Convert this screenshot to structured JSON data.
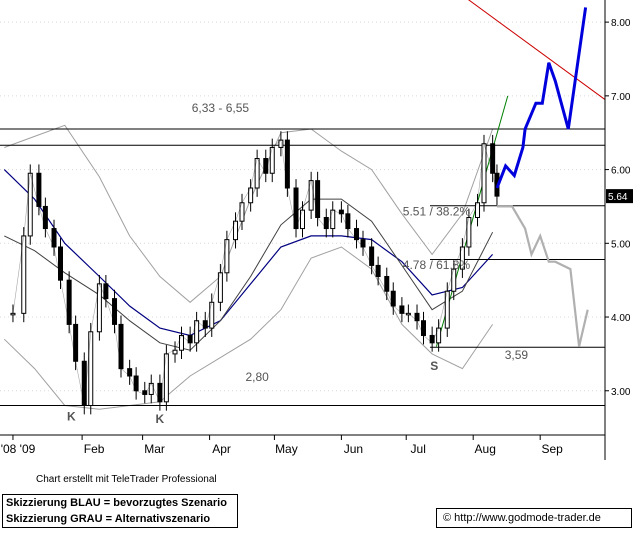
{
  "chart_data": {
    "type": "candlestick",
    "y_axis": {
      "position": "right",
      "ticks": [
        3.0,
        4.0,
        5.0,
        6.0,
        7.0,
        8.0
      ],
      "tick_labels": [
        "3.00",
        "4.00",
        "5.00",
        "6.00",
        "7.00",
        "8.00"
      ],
      "last_price_label": "5.64",
      "range": [
        2.4,
        8.3
      ]
    },
    "x_axis": {
      "tick_labels": [
        "'08 '09",
        "Feb",
        "Mar",
        "Apr",
        "May",
        "Jun",
        "Jul",
        "Aug",
        "Sep"
      ],
      "months": [
        "2008-12-31",
        "2009-02-01",
        "2009-03-01",
        "2009-04-01",
        "2009-05-01",
        "2009-06-01",
        "2009-07-01",
        "2009-08-01",
        "2009-09-01"
      ],
      "range": [
        "2008-12-25",
        "2009-10-01"
      ]
    },
    "horizontal_levels": [
      {
        "value": 6.55,
        "color": "#000000"
      },
      {
        "value": 6.33,
        "color": "#000000"
      },
      {
        "value": 5.51,
        "color": "#000000"
      },
      {
        "value": 4.78,
        "color": "#000000"
      },
      {
        "value": 3.59,
        "color": "#000000"
      },
      {
        "value": 2.8,
        "color": "#000000"
      }
    ],
    "annotations": [
      {
        "text": "6,33 - 6,55",
        "x": "2009-04-06",
        "y": 6.78
      },
      {
        "text": "5.51 / 38.2%",
        "x": "2009-07-15",
        "y": 5.38
      },
      {
        "text": "4.78 / 61.8%",
        "x": "2009-07-15",
        "y": 4.65
      },
      {
        "text": "3,59",
        "x": "2009-08-21",
        "y": 3.43
      },
      {
        "text": "2,80",
        "x": "2009-04-23",
        "y": 3.13
      },
      {
        "text": "K",
        "x": "2009-01-27",
        "y": 2.6
      },
      {
        "text": "K",
        "x": "2009-03-09",
        "y": 2.56
      },
      {
        "text": "S",
        "x": "2009-07-14",
        "y": 3.28
      }
    ],
    "price_series": {
      "name": "close",
      "x": [
        "2008-12-31",
        "2009-01-05",
        "2009-01-08",
        "2009-01-12",
        "2009-01-15",
        "2009-01-19",
        "2009-01-22",
        "2009-01-26",
        "2009-01-29",
        "2009-02-02",
        "2009-02-05",
        "2009-02-09",
        "2009-02-12",
        "2009-02-16",
        "2009-02-19",
        "2009-02-23",
        "2009-02-26",
        "2009-03-02",
        "2009-03-05",
        "2009-03-09",
        "2009-03-12",
        "2009-03-16",
        "2009-03-19",
        "2009-03-23",
        "2009-03-26",
        "2009-03-30",
        "2009-04-02",
        "2009-04-06",
        "2009-04-09",
        "2009-04-13",
        "2009-04-16",
        "2009-04-20",
        "2009-04-23",
        "2009-04-27",
        "2009-04-30",
        "2009-05-04",
        "2009-05-07",
        "2009-05-11",
        "2009-05-14",
        "2009-05-18",
        "2009-05-21",
        "2009-05-25",
        "2009-05-28",
        "2009-06-01",
        "2009-06-04",
        "2009-06-08",
        "2009-06-11",
        "2009-06-15",
        "2009-06-18",
        "2009-06-22",
        "2009-06-25",
        "2009-06-29",
        "2009-07-02",
        "2009-07-06",
        "2009-07-09",
        "2009-07-13",
        "2009-07-16",
        "2009-07-20",
        "2009-07-23",
        "2009-07-27",
        "2009-07-30",
        "2009-08-03",
        "2009-08-06",
        "2009-08-10",
        "2009-08-12"
      ],
      "values": [
        4.05,
        5.1,
        5.95,
        5.5,
        5.2,
        4.95,
        4.5,
        3.9,
        3.4,
        2.8,
        3.8,
        4.45,
        4.25,
        3.9,
        3.3,
        3.2,
        3.0,
        2.95,
        3.1,
        2.85,
        3.5,
        3.55,
        3.75,
        3.65,
        3.95,
        3.85,
        4.2,
        4.6,
        5.05,
        5.3,
        5.55,
        5.75,
        6.15,
        5.95,
        6.3,
        6.4,
        5.75,
        5.2,
        5.45,
        5.85,
        5.35,
        5.2,
        5.45,
        5.4,
        5.2,
        5.05,
        4.95,
        4.7,
        4.55,
        4.35,
        4.15,
        4.05,
        4.05,
        3.95,
        3.75,
        3.65,
        3.85,
        4.35,
        4.65,
        4.95,
        5.35,
        5.55,
        6.35,
        5.95,
        5.64
      ],
      "low": 2.8,
      "high": 6.6
    },
    "overlays": [
      {
        "name": "moving average",
        "color": "#000080",
        "x": [
          "2008-12-27",
          "2009-01-10",
          "2009-01-24",
          "2009-02-09",
          "2009-02-23",
          "2009-03-09",
          "2009-03-23",
          "2009-04-06",
          "2009-04-20",
          "2009-05-04",
          "2009-05-18",
          "2009-06-01",
          "2009-06-15",
          "2009-06-29",
          "2009-07-13",
          "2009-07-27",
          "2009-08-10"
        ],
        "values": [
          6.0,
          5.6,
          5.0,
          4.55,
          4.15,
          3.85,
          3.75,
          3.95,
          4.45,
          4.95,
          5.1,
          5.1,
          5.05,
          4.75,
          4.3,
          4.4,
          4.85
        ]
      },
      {
        "name": "bollinger upper",
        "color": "#a0a0a0",
        "x": [
          "2008-12-27",
          "2009-01-10",
          "2009-01-24",
          "2009-02-09",
          "2009-02-23",
          "2009-03-09",
          "2009-03-23",
          "2009-04-06",
          "2009-04-20",
          "2009-05-04",
          "2009-05-18",
          "2009-06-01",
          "2009-06-15",
          "2009-06-29",
          "2009-07-13",
          "2009-07-27",
          "2009-08-10"
        ],
        "values": [
          6.3,
          6.45,
          6.6,
          5.9,
          5.1,
          4.55,
          4.2,
          4.55,
          5.6,
          6.5,
          6.55,
          6.25,
          6.0,
          5.4,
          4.85,
          5.4,
          6.55
        ]
      },
      {
        "name": "bollinger lower",
        "color": "#a0a0a0",
        "x": [
          "2008-12-27",
          "2009-01-10",
          "2009-01-24",
          "2009-02-09",
          "2009-02-23",
          "2009-03-09",
          "2009-03-23",
          "2009-04-06",
          "2009-04-20",
          "2009-05-04",
          "2009-05-18",
          "2009-06-01",
          "2009-06-15",
          "2009-06-29",
          "2009-07-13",
          "2009-07-27",
          "2009-08-10"
        ],
        "values": [
          3.7,
          3.3,
          2.8,
          2.75,
          2.8,
          2.85,
          3.2,
          3.45,
          3.7,
          4.1,
          4.8,
          4.95,
          4.65,
          3.9,
          3.5,
          3.3,
          3.9
        ]
      },
      {
        "name": "bollinger middle",
        "color": "#404040",
        "x": [
          "2008-12-27",
          "2009-01-10",
          "2009-01-24",
          "2009-02-09",
          "2009-02-23",
          "2009-03-09",
          "2009-03-23",
          "2009-04-06",
          "2009-04-20",
          "2009-05-04",
          "2009-05-18",
          "2009-06-01",
          "2009-06-15",
          "2009-06-29",
          "2009-07-13",
          "2009-07-27",
          "2009-08-10"
        ],
        "values": [
          5.1,
          4.9,
          4.6,
          4.3,
          3.95,
          3.65,
          3.55,
          3.95,
          4.55,
          5.25,
          5.6,
          5.6,
          5.3,
          4.7,
          4.1,
          4.35,
          5.15
        ]
      }
    ],
    "trendlines": [
      {
        "name": "uptrend",
        "color": "#008000",
        "x": [
          "2009-07-15",
          "2009-08-17"
        ],
        "y": [
          3.6,
          7.0
        ]
      },
      {
        "name": "downtrend",
        "color": "#cc0000",
        "x": [
          "2009-07-23",
          "2009-10-01"
        ],
        "y": [
          8.45,
          6.95
        ]
      }
    ],
    "scenarios": [
      {
        "name": "BLAU",
        "color": "#0000dd",
        "x": [
          "2009-08-12",
          "2009-08-16",
          "2009-08-20",
          "2009-08-24",
          "2009-08-25",
          "2009-08-30",
          "2009-09-02",
          "2009-09-05",
          "2009-09-08",
          "2009-09-14",
          "2009-09-22"
        ],
        "y": [
          5.75,
          6.05,
          5.92,
          6.3,
          6.55,
          6.9,
          6.9,
          7.45,
          7.2,
          6.55,
          8.2
        ]
      },
      {
        "name": "GRAU",
        "color": "#b0b0b0",
        "x": [
          "2009-08-12",
          "2009-08-19",
          "2009-08-25",
          "2009-08-28",
          "2009-09-01",
          "2009-09-05",
          "2009-09-08",
          "2009-09-15",
          "2009-09-19",
          "2009-09-23"
        ],
        "y": [
          5.5,
          5.5,
          5.2,
          4.85,
          5.1,
          4.75,
          4.75,
          4.65,
          3.6,
          4.1
        ]
      }
    ]
  },
  "footer": {
    "credit": "Chart erstellt mit TeleTrader Professional",
    "legend_line_1": "Skizzierung BLAU = bevorzugtes Szenario",
    "legend_line_2": "Skizzierung GRAU = Alternativszenario",
    "copyright_symbol": "©",
    "source_url": "http://www.godmode-trader.de"
  }
}
